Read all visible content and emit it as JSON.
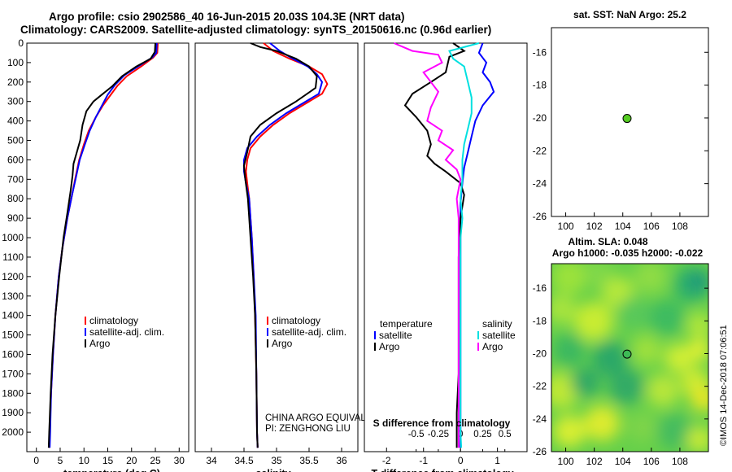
{
  "header": {
    "line1": "Argo profile: csio 2902586_40 16-Jun-2015 20.03S 104.3E (NRT data)",
    "line2": "Climatology: CARS2009. Satellite-adjusted climatology: synTS_20150616.nc (0.96d earlier)"
  },
  "colors": {
    "climatology": "#ff0000",
    "satellite": "#0000ff",
    "argo": "#000000",
    "salinity": "#00e0e0",
    "salinity_argo": "#ff00ff"
  },
  "chart_data": [
    {
      "type": "line",
      "id": "temperature",
      "xlabel": "temperature (deg C)",
      "ylabel": "",
      "invert_y": true,
      "xlim": [
        -2,
        32
      ],
      "ylim": [
        0,
        2100
      ],
      "xticks": [
        0,
        5,
        10,
        15,
        20,
        25,
        30
      ],
      "yticks": [
        0,
        100,
        200,
        300,
        400,
        500,
        600,
        700,
        800,
        900,
        1000,
        1100,
        1200,
        1300,
        1400,
        1500,
        1600,
        1700,
        1800,
        1900,
        2000
      ],
      "legend": [
        "climatology",
        "satellite-adj. clim.",
        "Argo"
      ],
      "series": [
        {
          "name": "climatology",
          "color": "#ff0000",
          "points": [
            [
              25.5,
              0
            ],
            [
              25.4,
              50
            ],
            [
              24.5,
              75
            ],
            [
              22,
              120
            ],
            [
              19,
              170
            ],
            [
              17,
              220
            ],
            [
              15.5,
              270
            ],
            [
              14,
              320
            ],
            [
              12.5,
              380
            ],
            [
              11,
              450
            ],
            [
              10,
              520
            ],
            [
              9,
              600
            ],
            [
              8.3,
              680
            ],
            [
              7.5,
              780
            ],
            [
              6.5,
              900
            ],
            [
              5.5,
              1050
            ],
            [
              4.7,
              1200
            ],
            [
              4,
              1400
            ],
            [
              3.5,
              1600
            ],
            [
              3.1,
              1800
            ],
            [
              2.8,
              2000
            ],
            [
              2.7,
              2080
            ]
          ]
        },
        {
          "name": "satellite-adj. clim.",
          "color": "#0000ff",
          "points": [
            [
              25.3,
              0
            ],
            [
              25.2,
              50
            ],
            [
              24.3,
              75
            ],
            [
              22,
              110
            ],
            [
              18.5,
              165
            ],
            [
              16.5,
              215
            ],
            [
              15,
              265
            ],
            [
              13.8,
              320
            ],
            [
              12.5,
              380
            ],
            [
              11.2,
              450
            ],
            [
              10.2,
              520
            ],
            [
              9.1,
              600
            ],
            [
              8.4,
              680
            ],
            [
              7.5,
              780
            ],
            [
              6.5,
              900
            ],
            [
              5.5,
              1050
            ],
            [
              4.7,
              1200
            ],
            [
              4,
              1400
            ],
            [
              3.5,
              1600
            ],
            [
              3.1,
              1800
            ],
            [
              2.9,
              2000
            ],
            [
              2.8,
              2080
            ]
          ]
        },
        {
          "name": "Argo",
          "color": "#000000",
          "points": [
            [
              25,
              0
            ],
            [
              24.9,
              45
            ],
            [
              24,
              80
            ],
            [
              21,
              120
            ],
            [
              18,
              170
            ],
            [
              16,
              220
            ],
            [
              14,
              260
            ],
            [
              12,
              300
            ],
            [
              10.5,
              350
            ],
            [
              9.7,
              420
            ],
            [
              9.2,
              500
            ],
            [
              8.5,
              560
            ],
            [
              7.8,
              620
            ],
            [
              7.6,
              680
            ],
            [
              7.2,
              760
            ],
            [
              6.6,
              860
            ],
            [
              5.7,
              1000
            ],
            [
              4.8,
              1200
            ],
            [
              4,
              1400
            ],
            [
              3.4,
              1600
            ],
            [
              3,
              1800
            ],
            [
              2.7,
              2000
            ],
            [
              2.6,
              2080
            ]
          ]
        }
      ]
    },
    {
      "type": "line",
      "id": "salinity",
      "xlabel": "salinity",
      "ylabel": "",
      "invert_y": true,
      "xlim": [
        33.75,
        36.25
      ],
      "ylim": [
        0,
        2100
      ],
      "xticks": [
        34,
        34.5,
        35,
        35.5,
        36
      ],
      "legend": [
        "climatology",
        "satellite-adj. clim.",
        "Argo"
      ],
      "annotation": [
        "CHINA ARGO EQUIVALENT",
        "PI: ZENGHONG LIU"
      ],
      "series": [
        {
          "name": "climatology",
          "color": "#ff0000",
          "points": [
            [
              34.8,
              0
            ],
            [
              34.95,
              40
            ],
            [
              35.2,
              80
            ],
            [
              35.5,
              120
            ],
            [
              35.7,
              160
            ],
            [
              35.78,
              210
            ],
            [
              35.7,
              260
            ],
            [
              35.45,
              310
            ],
            [
              35.2,
              360
            ],
            [
              34.95,
              420
            ],
            [
              34.75,
              480
            ],
            [
              34.6,
              540
            ],
            [
              34.55,
              600
            ],
            [
              34.53,
              660
            ],
            [
              34.55,
              720
            ],
            [
              34.58,
              800
            ],
            [
              34.62,
              1000
            ],
            [
              34.65,
              1200
            ],
            [
              34.67,
              1400
            ],
            [
              34.69,
              1700
            ],
            [
              34.7,
              2000
            ],
            [
              34.71,
              2080
            ]
          ]
        },
        {
          "name": "satellite-adj. clim.",
          "color": "#0000ff",
          "points": [
            [
              34.9,
              0
            ],
            [
              35.05,
              40
            ],
            [
              35.25,
              80
            ],
            [
              35.48,
              120
            ],
            [
              35.62,
              160
            ],
            [
              35.7,
              200
            ],
            [
              35.65,
              260
            ],
            [
              35.4,
              310
            ],
            [
              35.15,
              360
            ],
            [
              34.9,
              420
            ],
            [
              34.7,
              480
            ],
            [
              34.55,
              540
            ],
            [
              34.5,
              600
            ],
            [
              34.5,
              660
            ],
            [
              34.53,
              720
            ],
            [
              34.58,
              800
            ],
            [
              34.62,
              1000
            ],
            [
              34.65,
              1200
            ],
            [
              34.68,
              1400
            ],
            [
              34.69,
              1700
            ],
            [
              34.7,
              2000
            ],
            [
              34.71,
              2080
            ]
          ]
        },
        {
          "name": "Argo",
          "color": "#000000",
          "points": [
            [
              34.6,
              0
            ],
            [
              34.75,
              20
            ],
            [
              35.0,
              40
            ],
            [
              35.3,
              80
            ],
            [
              35.5,
              120
            ],
            [
              35.62,
              170
            ],
            [
              35.6,
              230
            ],
            [
              35.3,
              300
            ],
            [
              35.0,
              360
            ],
            [
              34.75,
              420
            ],
            [
              34.6,
              480
            ],
            [
              34.55,
              560
            ],
            [
              34.5,
              630
            ],
            [
              34.52,
              700
            ],
            [
              34.56,
              800
            ],
            [
              34.6,
              1000
            ],
            [
              34.64,
              1200
            ],
            [
              34.67,
              1400
            ],
            [
              34.69,
              1700
            ],
            [
              34.7,
              2000
            ],
            [
              34.71,
              2080
            ]
          ]
        }
      ]
    },
    {
      "type": "line",
      "id": "difference",
      "xlabel": "T difference from climatology",
      "xlabel2": "S difference from climatology",
      "invert_y": true,
      "xlim": [
        -2.6,
        1.8
      ],
      "ylim": [
        0,
        2100
      ],
      "xticks": [
        -2,
        -1,
        0,
        1
      ],
      "xticks_s": [
        "-0.5",
        "-0.25",
        "0",
        "0.25",
        "0.5"
      ],
      "legend_temp_title": "temperature",
      "legend_sal_title": "salinity",
      "legend": [
        "satellite",
        "Argo"
      ],
      "series": [
        {
          "name": "T satellite",
          "color": "#0000ff",
          "points": [
            [
              0.6,
              0
            ],
            [
              0.5,
              50
            ],
            [
              0.7,
              100
            ],
            [
              0.6,
              150
            ],
            [
              0.8,
              200
            ],
            [
              0.9,
              250
            ],
            [
              0.6,
              320
            ],
            [
              0.4,
              400
            ],
            [
              0.3,
              480
            ],
            [
              0.2,
              560
            ],
            [
              0.1,
              640
            ],
            [
              0.05,
              720
            ],
            [
              0,
              820
            ],
            [
              0,
              900
            ],
            [
              0,
              1100
            ],
            [
              0,
              1300
            ],
            [
              0,
              1500
            ],
            [
              0,
              1700
            ],
            [
              0,
              1900
            ],
            [
              0,
              2080
            ]
          ]
        },
        {
          "name": "T Argo",
          "color": "#000000",
          "points": [
            [
              -0.2,
              0
            ],
            [
              0.1,
              40
            ],
            [
              -0.3,
              70
            ],
            [
              -0.4,
              150
            ],
            [
              -0.8,
              200
            ],
            [
              -1.3,
              260
            ],
            [
              -1.5,
              320
            ],
            [
              -1.2,
              380
            ],
            [
              -0.9,
              450
            ],
            [
              -0.8,
              520
            ],
            [
              -0.9,
              580
            ],
            [
              -0.7,
              620
            ],
            [
              -0.4,
              660
            ],
            [
              0,
              720
            ],
            [
              0.1,
              780
            ],
            [
              0,
              900
            ],
            [
              -0.05,
              1100
            ],
            [
              -0.05,
              1300
            ],
            [
              -0.05,
              1500
            ],
            [
              -0.05,
              1700
            ],
            [
              -0.1,
              1900
            ],
            [
              -0.1,
              2080
            ]
          ]
        },
        {
          "name": "S satellite",
          "color": "#00e0e0",
          "points": [
            [
              0.5,
              0
            ],
            [
              -0.3,
              40
            ],
            [
              -0.2,
              80
            ],
            [
              0.1,
              120
            ],
            [
              0.2,
              200
            ],
            [
              0.3,
              280
            ],
            [
              0.3,
              360
            ],
            [
              0.2,
              440
            ],
            [
              0.1,
              520
            ],
            [
              0.05,
              600
            ],
            [
              0.05,
              700
            ],
            [
              0,
              800
            ],
            [
              0.05,
              900
            ],
            [
              0,
              1000
            ],
            [
              0,
              1200
            ],
            [
              0,
              1400
            ],
            [
              0,
              1600
            ],
            [
              0,
              1800
            ],
            [
              0,
              2000
            ],
            [
              0.02,
              2080
            ]
          ]
        },
        {
          "name": "S Argo",
          "color": "#ff00ff",
          "points": [
            [
              -1.8,
              0
            ],
            [
              -1.3,
              40
            ],
            [
              -0.6,
              60
            ],
            [
              -0.5,
              100
            ],
            [
              -1,
              150
            ],
            [
              -0.8,
              200
            ],
            [
              -0.6,
              250
            ],
            [
              -0.8,
              330
            ],
            [
              -0.9,
              400
            ],
            [
              -0.5,
              450
            ],
            [
              -0.6,
              500
            ],
            [
              -0.2,
              550
            ],
            [
              -0.4,
              600
            ],
            [
              -0.1,
              650
            ],
            [
              0,
              700
            ],
            [
              -0.1,
              800
            ],
            [
              -0.05,
              900
            ],
            [
              -0.05,
              1100
            ],
            [
              -0.05,
              1300
            ],
            [
              -0.05,
              1500
            ],
            [
              -0.05,
              1700
            ],
            [
              -0.05,
              1900
            ],
            [
              -0.05,
              2080
            ]
          ]
        }
      ]
    },
    {
      "type": "scatter",
      "id": "sst-map",
      "title": "sat. SST: NaN Argo: 25.2",
      "xlim": [
        99,
        110
      ],
      "ylim": [
        -26,
        -14.5
      ],
      "xticks": [
        100,
        102,
        104,
        106,
        108
      ],
      "yticks": [
        -16,
        -18,
        -20,
        -22,
        -24,
        -26
      ],
      "points": [
        {
          "x": 104.3,
          "y": -20.03
        }
      ]
    },
    {
      "type": "heatmap",
      "id": "sla-map",
      "title": "Altim. SLA: 0.048",
      "title2": "Argo h1000: -0.035 h2000: -0.022",
      "xlim": [
        99,
        110
      ],
      "ylim": [
        -26,
        -14.5
      ],
      "xticks": [
        100,
        102,
        104,
        106,
        108
      ],
      "yticks": [
        -16,
        -18,
        -20,
        -22,
        -24,
        -26
      ],
      "points": [
        {
          "x": 104.3,
          "y": -20.03
        }
      ]
    }
  ],
  "stamp": "©IMOS 14-Dec-2018 07:06:51"
}
